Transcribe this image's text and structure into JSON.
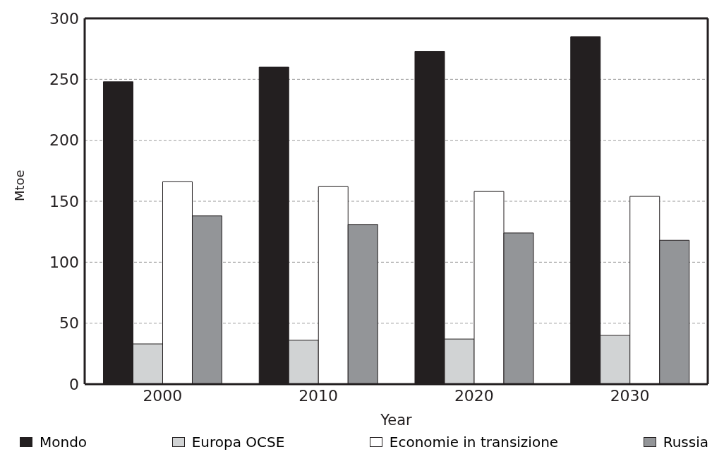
{
  "chart_data": {
    "type": "bar",
    "xlabel": "Year",
    "ylabel": "Mtoe",
    "categories": [
      "2000",
      "2010",
      "2020",
      "2030"
    ],
    "series": [
      {
        "name": "Mondo",
        "color": "#231f20",
        "values": [
          248,
          260,
          273,
          285
        ]
      },
      {
        "name": "Europa OCSE",
        "color": "#d1d3d4",
        "values": [
          33,
          36,
          37,
          40
        ]
      },
      {
        "name": "Economie in transizione",
        "color": "#ffffff",
        "values": [
          166,
          162,
          158,
          154
        ]
      },
      {
        "name": "Russia",
        "color": "#939598",
        "values": [
          138,
          131,
          124,
          118
        ]
      }
    ],
    "ylim": [
      0,
      300
    ],
    "yticks": [
      0,
      50,
      100,
      150,
      200,
      250,
      300
    ],
    "grid": "y",
    "legend": "bottom"
  }
}
